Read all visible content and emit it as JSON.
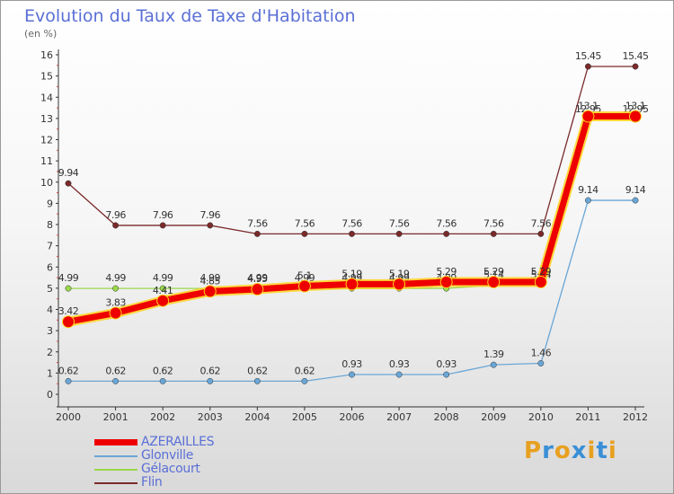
{
  "header": {
    "title": "Evolution du Taux de Taxe d'Habitation",
    "subtitle": "(en %)"
  },
  "logo": {
    "letters": [
      "P",
      "r",
      "o",
      "x",
      "i",
      "t",
      "i"
    ],
    "colors": [
      "#e8a020",
      "#3a8fd6",
      "#e8a020",
      "#3a8fd6",
      "#e8a020",
      "#3a8fd6",
      "#e8a020"
    ]
  },
  "chart_data": {
    "type": "line",
    "title": "Evolution du Taux de Taxe d'Habitation",
    "subtitle": "(en %)",
    "xlabel": "",
    "ylabel": "",
    "ylim": [
      0,
      16
    ],
    "yticks": [
      "0",
      "1",
      "2",
      "3",
      "4",
      "5",
      "6",
      "7",
      "8",
      "9",
      "10",
      "11",
      "12",
      "13",
      "14",
      "15",
      "16"
    ],
    "x": [
      "2000",
      "2001",
      "2002",
      "2003",
      "2004",
      "2005",
      "2006",
      "2007",
      "2008",
      "2009",
      "2010",
      "2011",
      "2012"
    ],
    "grid": false,
    "legend_position": "bottom-left",
    "series": [
      {
        "name": "Flin",
        "color": "#7a2a2a",
        "values": [
          9.94,
          7.96,
          7.96,
          7.96,
          7.56,
          7.56,
          7.56,
          7.56,
          7.56,
          7.56,
          7.56,
          15.45,
          15.45
        ],
        "labels": [
          "9.94",
          "7.96",
          "7.96",
          "7.96",
          "7.56",
          "7.56",
          "7.56",
          "7.56",
          "7.56",
          "7.56",
          "7.56",
          "15.45",
          "15.45"
        ]
      },
      {
        "name": "Gélacourt",
        "color": "#9ad84a",
        "values": [
          4.99,
          4.99,
          4.99,
          4.99,
          4.99,
          4.99,
          4.99,
          4.99,
          4.99,
          5.14,
          5.14,
          12.95,
          12.95
        ],
        "labels": [
          "4.99",
          "4.99",
          "4.99",
          "4.99",
          "4.99",
          "4.99",
          "4.99",
          "4.99",
          "4.99",
          "5.14",
          "5.14",
          "12.95",
          "12.95"
        ]
      },
      {
        "name": "Glonville",
        "color": "#6aa6d6",
        "values": [
          0.62,
          0.62,
          0.62,
          0.62,
          0.62,
          0.62,
          0.93,
          0.93,
          0.93,
          1.39,
          1.46,
          9.14,
          9.14
        ],
        "labels": [
          "0.62",
          "0.62",
          "0.62",
          "0.62",
          "0.62",
          "0.62",
          "0.93",
          "0.93",
          "0.93",
          "1.39",
          "1.46",
          "9.14",
          "9.14"
        ]
      },
      {
        "name": "AZERAILLES",
        "color": "#ee0000",
        "values": [
          3.42,
          3.83,
          4.41,
          4.85,
          4.95,
          5.1,
          5.19,
          5.19,
          5.29,
          5.29,
          5.29,
          13.1,
          13.1
        ],
        "labels": [
          "3.42",
          "3.83",
          "4.41",
          "4.85",
          "4.95",
          "5.1",
          "5.19",
          "5.19",
          "5.29",
          "5.29",
          "5.29",
          "13.1",
          "13.1"
        ]
      }
    ],
    "legend": [
      {
        "name": "AZERAILLES",
        "color": "#ee0000",
        "thick": true
      },
      {
        "name": "Glonville",
        "color": "#6aa6d6",
        "thick": false
      },
      {
        "name": "Gélacourt",
        "color": "#9ad84a",
        "thick": false
      },
      {
        "name": "Flin",
        "color": "#7a2a2a",
        "thick": false
      }
    ]
  }
}
